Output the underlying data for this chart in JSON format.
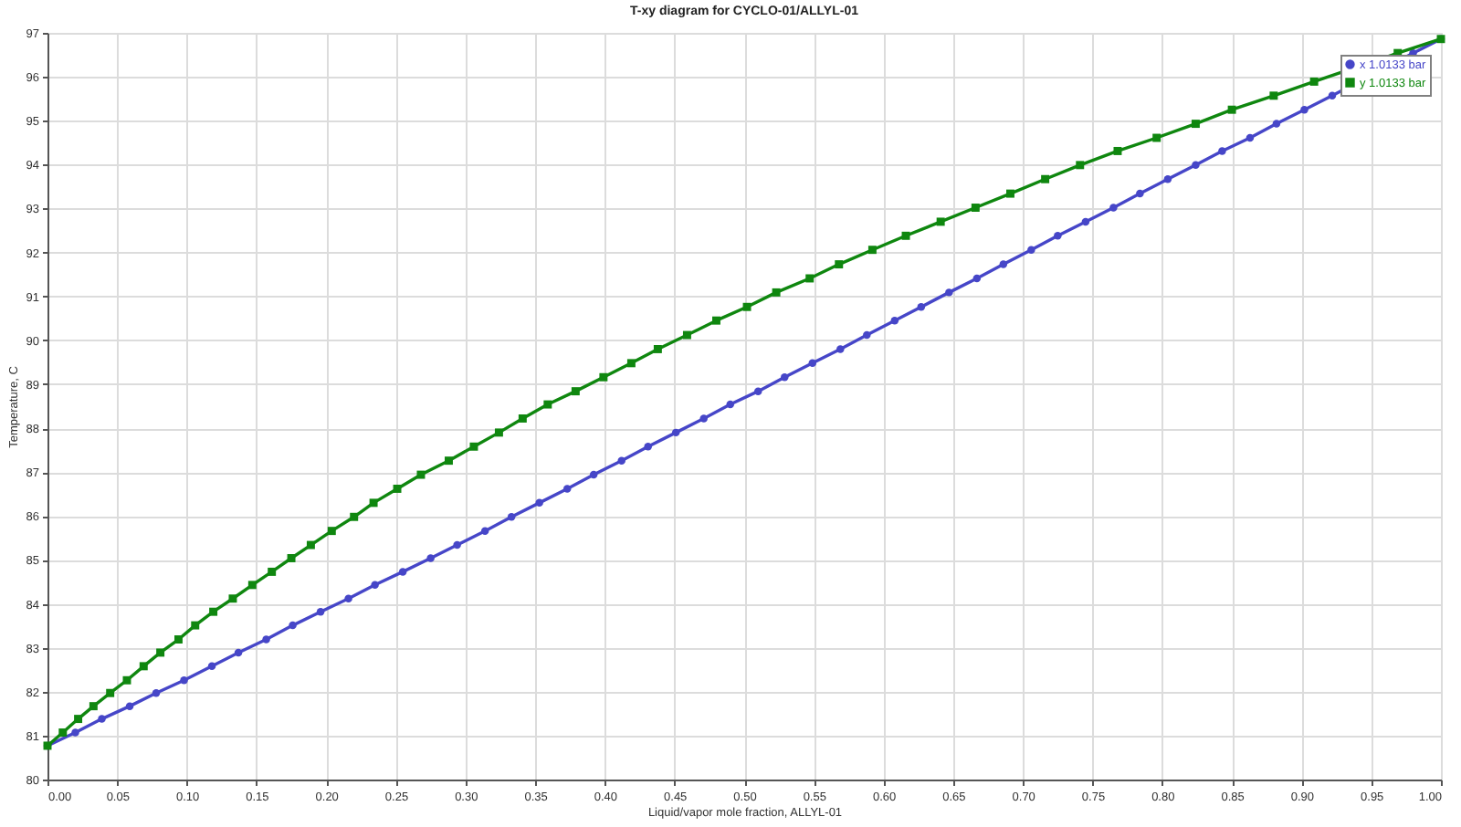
{
  "chart_data": {
    "type": "line",
    "title": "T-xy diagram for CYCLO-01/ALLYL-01",
    "xlabel": "Liquid/vapor mole fraction, ALLYL-01",
    "ylabel": "Temperature, C",
    "xlim": [
      0,
      1
    ],
    "ylim": [
      80,
      97
    ],
    "xticks": [
      {
        "value": 0,
        "label": "0.00"
      },
      {
        "value": 0.05,
        "label": "0.05"
      },
      {
        "value": 0.1,
        "label": "0.10"
      },
      {
        "value": 0.15,
        "label": "0.15"
      },
      {
        "value": 0.2,
        "label": "0.20"
      },
      {
        "value": 0.25,
        "label": "0.25"
      },
      {
        "value": 0.3,
        "label": "0.30"
      },
      {
        "value": 0.35,
        "label": "0.35"
      },
      {
        "value": 0.4,
        "label": "0.40"
      },
      {
        "value": 0.45,
        "label": "0.45"
      },
      {
        "value": 0.5,
        "label": "0.50"
      },
      {
        "value": 0.55,
        "label": "0.55"
      },
      {
        "value": 0.6,
        "label": "0.60"
      },
      {
        "value": 0.65,
        "label": "0.65"
      },
      {
        "value": 0.7,
        "label": "0.70"
      },
      {
        "value": 0.75,
        "label": "0.75"
      },
      {
        "value": 0.8,
        "label": "0.80"
      },
      {
        "value": 0.85,
        "label": "0.85"
      },
      {
        "value": 0.9,
        "label": "0.90"
      },
      {
        "value": 0.95,
        "label": "0.95"
      },
      {
        "value": 1,
        "label": "1.00"
      }
    ],
    "yticks": [
      80,
      81,
      82,
      83,
      84,
      85,
      86,
      87,
      88,
      89,
      90,
      91,
      92,
      93,
      94,
      95,
      96,
      97
    ],
    "grid": true,
    "legend": "top right",
    "line_style": "solid",
    "series": [
      {
        "name": "x 1.0133 bar",
        "color": "#4646c8",
        "marker": "circle",
        "x": [
          0,
          0.02,
          0.039,
          0.059,
          0.078,
          0.098,
          0.118,
          0.137,
          0.157,
          0.176,
          0.196,
          0.216,
          0.235,
          0.255,
          0.275,
          0.294,
          0.314,
          0.333,
          0.353,
          0.373,
          0.392,
          0.412,
          0.431,
          0.451,
          0.471,
          0.49,
          0.51,
          0.529,
          0.549,
          0.569,
          0.588,
          0.608,
          0.627,
          0.647,
          0.667,
          0.686,
          0.706,
          0.725,
          0.745,
          0.765,
          0.784,
          0.804,
          0.824,
          0.843,
          0.863,
          0.882,
          0.902,
          0.922,
          0.941,
          0.961,
          0.98,
          1
        ],
        "values": [
          80.77,
          81.07,
          81.38,
          81.67,
          81.97,
          82.26,
          82.58,
          82.89,
          83.19,
          83.51,
          83.82,
          84.12,
          84.43,
          84.73,
          85.04,
          85.34,
          85.66,
          85.98,
          86.3,
          86.62,
          86.94,
          87.26,
          87.58,
          87.9,
          88.22,
          88.54,
          88.84,
          89.16,
          89.48,
          89.8,
          90.12,
          90.45,
          90.76,
          91.09,
          91.41,
          91.73,
          92.06,
          92.38,
          92.7,
          93.02,
          93.34,
          93.67,
          93.99,
          94.31,
          94.61,
          94.93,
          95.25,
          95.57,
          null,
          null,
          96.54,
          96.86
        ]
      },
      {
        "name": "y 1.0133 bar",
        "color": "#0f870f",
        "marker": "square",
        "x": [
          0,
          0.011,
          0.022,
          0.033,
          0.045,
          0.057,
          0.069,
          0.081,
          0.094,
          0.106,
          0.119,
          0.133,
          0.147,
          0.161,
          0.175,
          0.189,
          0.204,
          0.22,
          0.234,
          0.251,
          0.268,
          0.288,
          0.306,
          0.324,
          0.341,
          0.359,
          0.379,
          0.399,
          0.419,
          0.438,
          0.459,
          0.48,
          0.502,
          0.523,
          0.547,
          0.568,
          0.592,
          0.616,
          0.641,
          0.666,
          0.691,
          0.716,
          0.741,
          0.768,
          0.796,
          0.824,
          0.85,
          0.88,
          0.909,
          null,
          0.969,
          1
        ],
        "values": [
          80.77,
          81.07,
          81.38,
          81.67,
          81.97,
          82.26,
          82.58,
          82.89,
          83.19,
          83.51,
          83.82,
          84.12,
          84.43,
          84.73,
          85.04,
          85.34,
          85.66,
          85.98,
          86.3,
          86.62,
          86.94,
          87.26,
          87.58,
          87.9,
          88.22,
          88.54,
          88.84,
          89.16,
          89.48,
          89.8,
          90.12,
          90.45,
          90.76,
          91.09,
          91.41,
          91.73,
          92.06,
          92.38,
          92.7,
          93.02,
          93.34,
          93.67,
          93.99,
          94.31,
          94.61,
          94.93,
          95.25,
          95.57,
          95.89,
          null,
          96.54,
          96.86
        ]
      }
    ]
  }
}
